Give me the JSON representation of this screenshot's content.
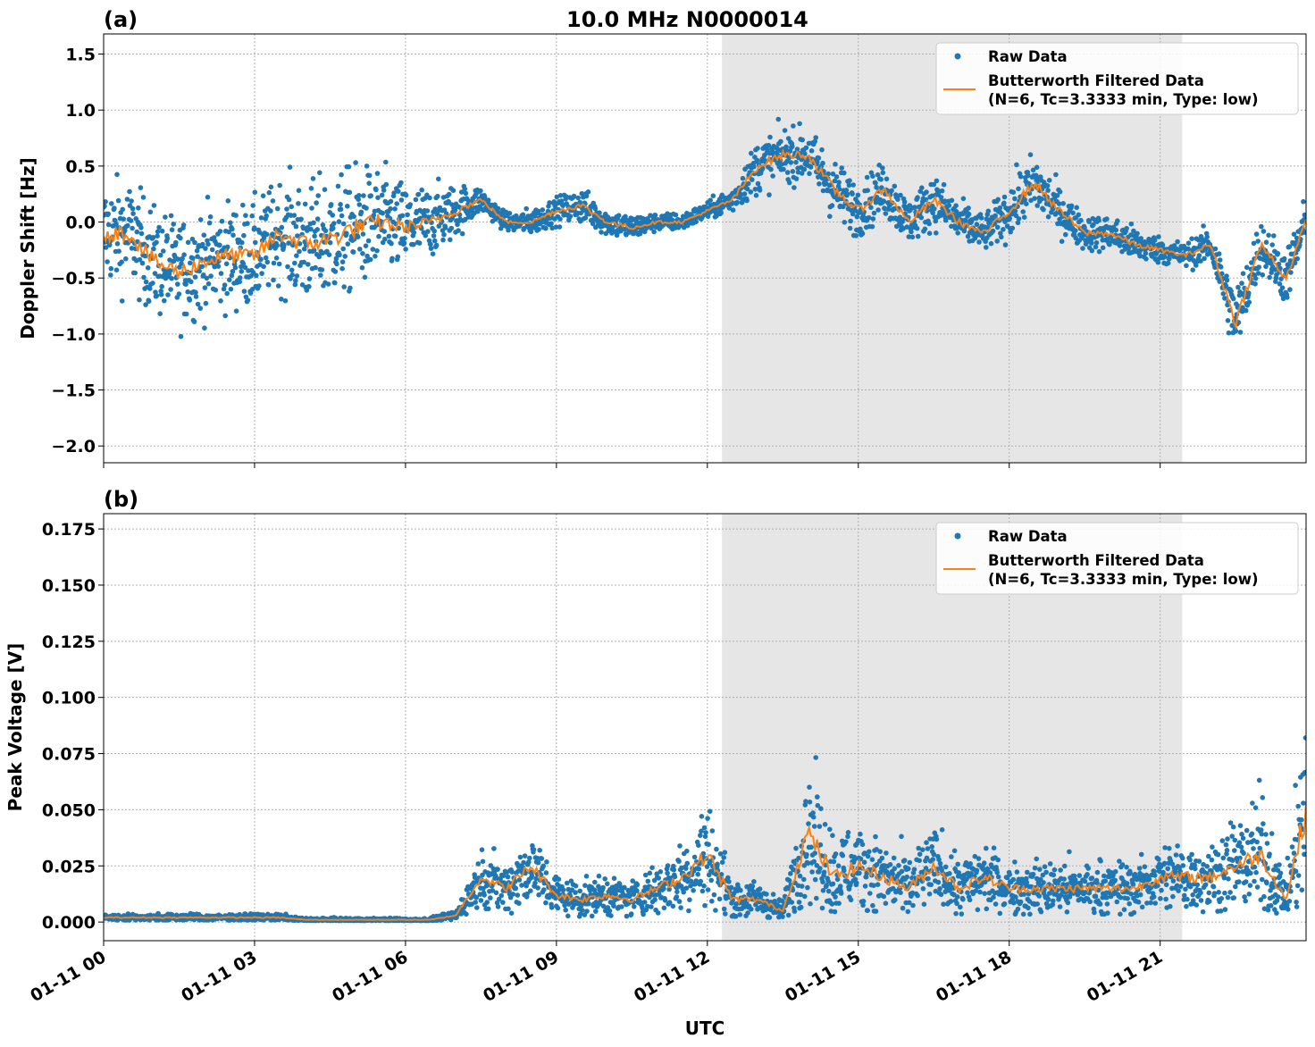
{
  "chart_data": [
    {
      "type": "scatter+line",
      "panel_label": "(a)",
      "title": "10.0 MHz N0000014",
      "xlabel": "",
      "ylabel": "Doppler Shift [Hz]",
      "xlim_hours": [
        0,
        23.9
      ],
      "ylim": [
        -2.15,
        1.68
      ],
      "yticks": [
        1.5,
        1.0,
        0.5,
        0.0,
        -0.5,
        -1.0,
        -1.5,
        -2.0
      ],
      "ytick_labels": [
        "1.5",
        "1.0",
        "0.5",
        "0.0",
        "−0.5",
        "−1.0",
        "−1.5",
        "−2.0"
      ],
      "grid": true,
      "shaded_region_hours": [
        12.29,
        21.44
      ],
      "legend_position": "top-right",
      "legend": [
        "Raw Data",
        "Butterworth Filtered Data",
        "(N=6, Tc=3.3333 min, Type: low)"
      ],
      "x_hours": [
        0,
        0.5,
        1,
        1.5,
        2,
        2.5,
        3,
        3.5,
        4,
        4.5,
        5,
        5.5,
        6,
        6.5,
        7,
        7.5,
        8,
        8.5,
        9,
        9.5,
        10,
        10.5,
        11,
        11.5,
        12,
        12.5,
        13,
        13.5,
        14,
        14.5,
        15,
        15.5,
        16,
        16.5,
        17,
        17.5,
        18,
        18.5,
        19,
        19.5,
        20,
        20.5,
        21,
        21.5,
        22,
        22.5,
        23,
        23.5,
        23.9
      ],
      "series": [
        {
          "name": "Butterworth Filtered Data",
          "color": "#ff7f0e",
          "values": [
            -0.1,
            -0.1,
            -0.35,
            -0.45,
            -0.35,
            -0.3,
            -0.3,
            -0.1,
            -0.2,
            -0.15,
            -0.05,
            0.0,
            -0.05,
            0.0,
            0.1,
            0.2,
            0.0,
            0.0,
            0.1,
            0.15,
            0.0,
            -0.05,
            0.0,
            0.0,
            0.1,
            0.2,
            0.5,
            0.6,
            0.6,
            0.3,
            0.1,
            0.3,
            0.0,
            0.2,
            0.0,
            -0.1,
            0.1,
            0.35,
            0.1,
            -0.1,
            -0.1,
            -0.2,
            -0.25,
            -0.3,
            -0.2,
            -0.9,
            -0.2,
            -0.5,
            0.0
          ]
        },
        {
          "name": "Raw Data",
          "color": "#1f77b4",
          "spread": [
            0.6,
            0.6,
            0.6,
            0.6,
            0.6,
            0.6,
            0.6,
            0.6,
            0.7,
            0.7,
            0.7,
            0.6,
            0.5,
            0.4,
            0.3,
            0.15,
            0.1,
            0.15,
            0.15,
            0.2,
            0.15,
            0.15,
            0.1,
            0.1,
            0.1,
            0.15,
            0.3,
            0.3,
            0.3,
            0.35,
            0.3,
            0.3,
            0.25,
            0.3,
            0.25,
            0.2,
            0.3,
            0.35,
            0.25,
            0.2,
            0.2,
            0.2,
            0.15,
            0.15,
            0.2,
            0.4,
            0.3,
            0.3,
            0.3
          ]
        }
      ]
    },
    {
      "type": "scatter+line",
      "panel_label": "(b)",
      "title": "",
      "xlabel": "UTC",
      "ylabel": "Peak Voltage [V]",
      "xlim_hours": [
        0,
        23.9
      ],
      "ylim": [
        -0.0083,
        0.1818
      ],
      "yticks": [
        0.175,
        0.15,
        0.125,
        0.1,
        0.075,
        0.05,
        0.025,
        0.0
      ],
      "ytick_labels": [
        "0.175",
        "0.150",
        "0.125",
        "0.100",
        "0.075",
        "0.050",
        "0.025",
        "0.000"
      ],
      "xtick_hours": [
        0,
        3,
        6,
        9,
        12,
        15,
        18,
        21
      ],
      "xtick_labels": [
        "01-11 00",
        "01-11 03",
        "01-11 06",
        "01-11 09",
        "01-11 12",
        "01-11 15",
        "01-11 18",
        "01-11 21"
      ],
      "grid": true,
      "shaded_region_hours": [
        12.29,
        21.44
      ],
      "legend_position": "top-right",
      "legend": [
        "Raw Data",
        "Butterworth Filtered Data",
        "(N=6, Tc=3.3333 min, Type: low)"
      ],
      "x_hours": [
        0,
        0.5,
        1,
        1.5,
        2,
        2.5,
        3,
        3.5,
        4,
        4.5,
        5,
        5.5,
        6,
        6.5,
        7,
        7.5,
        8,
        8.5,
        9,
        9.5,
        10,
        10.5,
        11,
        11.5,
        12,
        12.5,
        13,
        13.5,
        14,
        14.5,
        15,
        15.5,
        16,
        16.5,
        17,
        17.5,
        18,
        18.5,
        19,
        19.5,
        20,
        20.5,
        21,
        21.5,
        22,
        22.5,
        23,
        23.5,
        23.9
      ],
      "series": [
        {
          "name": "Butterworth Filtered Data",
          "color": "#ff7f0e",
          "values": [
            0.002,
            0.002,
            0.002,
            0.002,
            0.002,
            0.002,
            0.002,
            0.002,
            0.001,
            0.001,
            0.001,
            0.001,
            0.001,
            0.001,
            0.003,
            0.02,
            0.015,
            0.025,
            0.012,
            0.01,
            0.012,
            0.01,
            0.015,
            0.02,
            0.03,
            0.01,
            0.01,
            0.005,
            0.04,
            0.02,
            0.025,
            0.02,
            0.015,
            0.025,
            0.015,
            0.02,
            0.015,
            0.015,
            0.015,
            0.015,
            0.015,
            0.015,
            0.02,
            0.02,
            0.02,
            0.025,
            0.03,
            0.01,
            0.05
          ]
        },
        {
          "name": "Raw Data",
          "color": "#1f77b4",
          "spread": [
            0.002,
            0.002,
            0.002,
            0.002,
            0.002,
            0.002,
            0.002,
            0.002,
            0.001,
            0.001,
            0.001,
            0.001,
            0.001,
            0.001,
            0.003,
            0.015,
            0.015,
            0.02,
            0.012,
            0.01,
            0.012,
            0.01,
            0.015,
            0.02,
            0.03,
            0.012,
            0.01,
            0.005,
            0.04,
            0.025,
            0.025,
            0.02,
            0.018,
            0.02,
            0.018,
            0.018,
            0.015,
            0.015,
            0.015,
            0.015,
            0.015,
            0.015,
            0.018,
            0.02,
            0.02,
            0.025,
            0.035,
            0.01,
            0.06
          ]
        }
      ]
    }
  ]
}
